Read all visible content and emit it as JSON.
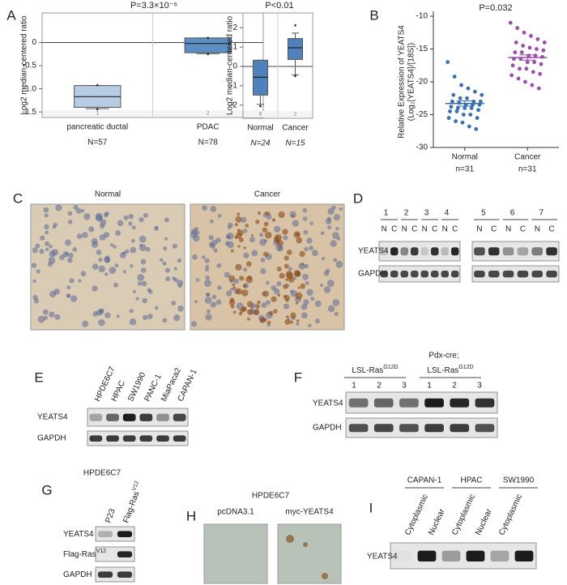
{
  "chart_data": [
    {
      "type": "box",
      "title": "P=3.3×10⁻⁶",
      "ylabel": "Log2 median-centered ratio",
      "categories": [
        "pancreatic ductal",
        "PDAC"
      ],
      "category_ids": [
        "1",
        "2"
      ],
      "n_labels": [
        "N=57",
        "N=78"
      ],
      "boxes": [
        {
          "whislo": -1.43,
          "q1": -1.4,
          "med": -1.17,
          "q3": -0.93,
          "whishi": -0.93,
          "fliers": [
            -0.92,
            -1.44
          ],
          "color": "#b8cce4"
        },
        {
          "whislo": -0.24,
          "q1": -0.22,
          "med": -0.02,
          "q3": 0.1,
          "whishi": 0.1,
          "fliers": [
            0.1,
            -0.25
          ],
          "color": "#5b8fc4"
        }
      ],
      "hline": 0,
      "ylim": [
        -1.62,
        0.64
      ],
      "yticks": [
        -1.5,
        {
          "value": -1,
          "label": "-1.0"
        },
        -0.5,
        0
      ]
    },
    {
      "type": "box",
      "title": "P<0.01",
      "ylabel": "Log2 median-centered ratio",
      "categories": [
        "Normal",
        "Cancer"
      ],
      "category_ids": [
        "8",
        "2"
      ],
      "n_labels": [
        "N=24",
        "N=15"
      ],
      "boxes": [
        {
          "whislo": -1.96,
          "q1": -1.48,
          "med": -0.56,
          "q3": 0.32,
          "whishi": 0.32,
          "fliers": [
            -2.05
          ],
          "color": "#4f81bd"
        },
        {
          "whislo": -0.44,
          "q1": 0.36,
          "med": 0.96,
          "q3": 1.44,
          "whishi": 1.72,
          "fliers": [
            2.12,
            -0.5
          ],
          "color": "#4f81bd"
        }
      ],
      "hline": 0,
      "ylim": [
        -2.68,
        2.76
      ],
      "yticks": [
        -2,
        -1,
        0,
        1,
        2
      ]
    },
    {
      "type": "scatter",
      "title": "P=0.032",
      "ylabel": [
        "Relative Expression of YEATS4",
        "(Log₂[YEATS4]/[18S])"
      ],
      "categories": [
        "Normal",
        "Cancer"
      ],
      "n_labels": [
        "n=31",
        "n=31"
      ],
      "series": [
        {
          "name": "Normal",
          "color": "#3a6fb0",
          "mean": -23.3,
          "sem": 0.4,
          "values": [
            -17,
            -19.2,
            -20.5,
            -21,
            -21.5,
            -22,
            -22,
            -22.5,
            -22.5,
            -23,
            -23,
            -23,
            -23.2,
            -23.5,
            -23.5,
            -23.5,
            -23.8,
            -24,
            -24,
            -24,
            -24.3,
            -24.5,
            -24.5,
            -25,
            -25,
            -25.5,
            -25.5,
            -26,
            -26.2,
            -26.8,
            -27.2
          ]
        },
        {
          "name": "Cancer",
          "color": "#9b4fa8",
          "mean": -16.3,
          "sem": 0.4,
          "values": [
            -11,
            -11.8,
            -12.5,
            -13,
            -13.5,
            -14,
            -14,
            -14.5,
            -14.8,
            -15,
            -15.2,
            -15.5,
            -15.5,
            -16,
            -16,
            -16.2,
            -16.5,
            -16.5,
            -17,
            -17,
            -17.3,
            -17.5,
            -18,
            -18,
            -18.5,
            -18.8,
            -19,
            -19.5,
            -20,
            -20.5,
            -21
          ]
        }
      ],
      "ylim": [
        -30,
        -10
      ],
      "yticks": [
        -10,
        -15,
        -20,
        -25,
        -30
      ]
    }
  ],
  "panels": {
    "A": {
      "label": "A"
    },
    "B": {
      "label": "B"
    },
    "C": {
      "label": "C",
      "images": [
        "Normal",
        "Cancer"
      ]
    },
    "D": {
      "label": "D",
      "samples": [
        "1",
        "2",
        "3",
        "4",
        "5",
        "6",
        "7"
      ],
      "lanes": [
        "N",
        "C",
        "N",
        "C",
        "N",
        "C",
        "N",
        "C",
        "N",
        "C",
        "N",
        "C",
        "N",
        "C"
      ],
      "rows": [
        "YEATS4",
        "GAPDH"
      ]
    },
    "E": {
      "label": "E",
      "lanes": [
        "HPDE6C7",
        "HPAC",
        "SW1990",
        "PANC-1",
        "MiaPaca2",
        "CAPAN-1"
      ],
      "rows": [
        "YEATS4",
        "GAPDH"
      ]
    },
    "F": {
      "label": "F",
      "header": "Pdx-cre;",
      "groups": [
        {
          "name": "LSL-Ras",
          "sup": "G12D"
        },
        {
          "name": "LSL-Ras",
          "sup": "G12D"
        }
      ],
      "lanes": [
        "1",
        "2",
        "3",
        "1",
        "2",
        "3"
      ],
      "rows": [
        "YEATS4",
        "GAPDH"
      ]
    },
    "G": {
      "label": "G",
      "header": "HPDE6C7",
      "lanes": [
        {
          "name": "P23"
        },
        {
          "name": "Flag-Ras",
          "sup": "V12"
        }
      ],
      "rows": [
        {
          "name": "YEATS4"
        },
        {
          "name": "Flag-Ras",
          "sup": "V12"
        },
        {
          "name": "GAPDH"
        }
      ]
    },
    "H": {
      "label": "H",
      "header": "HPDE6C7",
      "images": [
        "pcDNA3.1",
        "myc-YEATS4"
      ]
    },
    "I": {
      "label": "I",
      "groups": [
        "CAPAN-1",
        "HPAC",
        "SW1990"
      ],
      "lanes": [
        "Cytoplasmic",
        "Nuclear",
        "Cytoplasmic",
        "Nuclear",
        "Cytoplasmic"
      ],
      "rows": [
        "YEATS4"
      ]
    }
  }
}
